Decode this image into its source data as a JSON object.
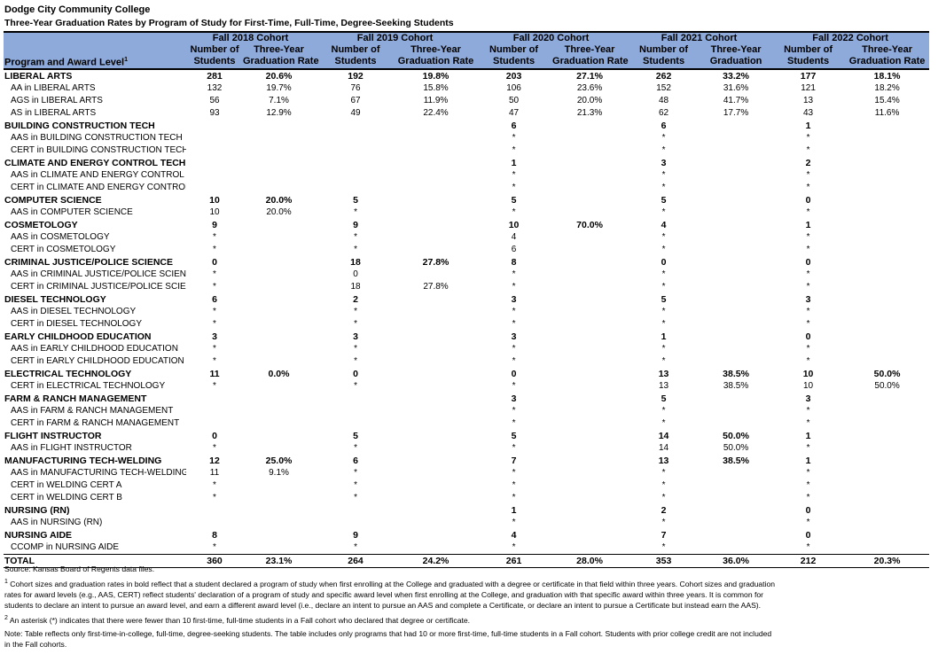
{
  "title": "Dodge City Community College",
  "subtitle": "Three-Year Graduation Rates by Program of Study for First-Time, Full-Time, Degree-Seeking Students",
  "header": {
    "label_col": "Program and Award Level",
    "label_sup": "1",
    "cohorts": [
      "Fall 2018 Cohort",
      "Fall 2019 Cohort",
      "Fall 2020 Cohort",
      "Fall 2021 Cohort",
      "Fall 2022 Cohort"
    ],
    "sub1": [
      "Number of",
      "Three-Year",
      "Number of",
      "Three-Year",
      "Number of",
      "Three-Year",
      "Number of",
      "Three-Year",
      "Number of",
      "Three-Year"
    ],
    "sub2": [
      "Students",
      "Graduation Rate",
      "Students",
      "Graduation Rate",
      "Students",
      "Graduation Rate",
      "Students",
      "Graduation",
      "Students",
      "Graduation Rate"
    ]
  },
  "header_color": "#8eaadb",
  "rows": [
    {
      "type": "prog",
      "label": "LIBERAL ARTS",
      "cells": [
        "281",
        "20.6%",
        "192",
        "19.8%",
        "203",
        "27.1%",
        "262",
        "33.2%",
        "177",
        "18.1%"
      ]
    },
    {
      "type": "sub",
      "label": "AA in LIBERAL ARTS",
      "cells": [
        "132",
        "19.7%",
        "76",
        "15.8%",
        "106",
        "23.6%",
        "152",
        "31.6%",
        "121",
        "18.2%"
      ]
    },
    {
      "type": "sub",
      "label": "AGS in LIBERAL ARTS",
      "cells": [
        "56",
        "7.1%",
        "67",
        "11.9%",
        "50",
        "20.0%",
        "48",
        "41.7%",
        "13",
        "15.4%"
      ]
    },
    {
      "type": "sub",
      "label": "AS in LIBERAL ARTS",
      "cells": [
        "93",
        "12.9%",
        "49",
        "22.4%",
        "47",
        "21.3%",
        "62",
        "17.7%",
        "43",
        "11.6%"
      ]
    },
    {
      "type": "prog",
      "label": "BUILDING CONSTRUCTION TECH",
      "cells": [
        "",
        "",
        "",
        "",
        "6",
        "",
        "6",
        "",
        "1",
        ""
      ]
    },
    {
      "type": "sub",
      "label": "AAS in BUILDING CONSTRUCTION TECH",
      "cells": [
        "",
        "",
        "",
        "",
        "*",
        "",
        "*",
        "",
        "*",
        ""
      ]
    },
    {
      "type": "sub",
      "label": "CERT in BUILDING CONSTRUCTION TECH",
      "cells": [
        "",
        "",
        "",
        "",
        "*",
        "",
        "*",
        "",
        "*",
        ""
      ]
    },
    {
      "type": "prog",
      "label": "CLIMATE AND ENERGY CONTROL TECH (HVAC)",
      "cells": [
        "",
        "",
        "",
        "",
        "1",
        "",
        "3",
        "",
        "2",
        ""
      ]
    },
    {
      "type": "sub",
      "label": "AAS in CLIMATE AND ENERGY CONTROL TECH",
      "cells": [
        "",
        "",
        "",
        "",
        "*",
        "",
        "*",
        "",
        "*",
        ""
      ]
    },
    {
      "type": "sub",
      "label": "CERT in CLIMATE AND ENERGY CONTROL TECH",
      "cells": [
        "",
        "",
        "",
        "",
        "*",
        "",
        "*",
        "",
        "*",
        ""
      ]
    },
    {
      "type": "prog",
      "label": "COMPUTER SCIENCE",
      "cells": [
        "10",
        "20.0%",
        "5",
        "",
        "5",
        "",
        "5",
        "",
        "0",
        ""
      ]
    },
    {
      "type": "sub",
      "label": "AAS in COMPUTER SCIENCE",
      "cells": [
        "10",
        "20.0%",
        "*",
        "",
        "*",
        "",
        "*",
        "",
        "*",
        ""
      ]
    },
    {
      "type": "prog",
      "label": "COSMETOLOGY",
      "cells": [
        "9",
        "",
        "9",
        "",
        "10",
        "70.0%",
        "4",
        "",
        "1",
        ""
      ]
    },
    {
      "type": "sub",
      "label": "AAS in COSMETOLOGY",
      "cells": [
        "*",
        "",
        "*",
        "",
        "4",
        "",
        "*",
        "",
        "*",
        ""
      ]
    },
    {
      "type": "sub",
      "label": "CERT in COSMETOLOGY",
      "cells": [
        "*",
        "",
        "*",
        "",
        "6",
        "",
        "*",
        "",
        "*",
        ""
      ]
    },
    {
      "type": "prog",
      "label": "CRIMINAL JUSTICE/POLICE SCIENCE",
      "cells": [
        "0",
        "",
        "18",
        "27.8%",
        "8",
        "",
        "0",
        "",
        "0",
        ""
      ]
    },
    {
      "type": "sub",
      "label": "AAS in CRIMINAL JUSTICE/POLICE SCIENC",
      "cells": [
        "*",
        "",
        "0",
        "",
        "*",
        "",
        "*",
        "",
        "*",
        ""
      ]
    },
    {
      "type": "sub",
      "label": "CERT in CRIMINAL JUSTICE/POLICE SCIEN",
      "cells": [
        "*",
        "",
        "18",
        "27.8%",
        "*",
        "",
        "*",
        "",
        "*",
        ""
      ]
    },
    {
      "type": "prog",
      "label": "DIESEL TECHNOLOGY",
      "cells": [
        "6",
        "",
        "2",
        "",
        "3",
        "",
        "5",
        "",
        "3",
        ""
      ]
    },
    {
      "type": "sub",
      "label": "AAS in DIESEL TECHNOLOGY",
      "cells": [
        "*",
        "",
        "*",
        "",
        "*",
        "",
        "*",
        "",
        "*",
        ""
      ]
    },
    {
      "type": "sub",
      "label": "CERT in DIESEL TECHNOLOGY",
      "cells": [
        "*",
        "",
        "*",
        "",
        "*",
        "",
        "*",
        "",
        "*",
        ""
      ]
    },
    {
      "type": "prog",
      "label": "EARLY CHILDHOOD EDUCATION",
      "cells": [
        "3",
        "",
        "3",
        "",
        "3",
        "",
        "1",
        "",
        "0",
        ""
      ]
    },
    {
      "type": "sub",
      "label": "AAS in EARLY CHILDHOOD EDUCATION",
      "cells": [
        "*",
        "",
        "*",
        "",
        "*",
        "",
        "*",
        "",
        "*",
        ""
      ]
    },
    {
      "type": "sub",
      "label": "CERT in EARLY CHILDHOOD EDUCATION",
      "cells": [
        "*",
        "",
        "*",
        "",
        "*",
        "",
        "*",
        "",
        "*",
        ""
      ]
    },
    {
      "type": "prog",
      "label": "ELECTRICAL TECHNOLOGY",
      "cells": [
        "11",
        "0.0%",
        "0",
        "",
        "0",
        "",
        "13",
        "38.5%",
        "10",
        "50.0%"
      ]
    },
    {
      "type": "sub",
      "label": "CERT in ELECTRICAL TECHNOLOGY",
      "cells": [
        "*",
        "",
        "*",
        "",
        "*",
        "",
        "13",
        "38.5%",
        "10",
        "50.0%"
      ]
    },
    {
      "type": "prog",
      "label": "FARM & RANCH MANAGEMENT",
      "cells": [
        "",
        "",
        "",
        "",
        "3",
        "",
        "5",
        "",
        "3",
        ""
      ]
    },
    {
      "type": "sub",
      "label": "AAS in FARM & RANCH MANAGEMENT",
      "cells": [
        "",
        "",
        "",
        "",
        "*",
        "",
        "*",
        "",
        "*",
        ""
      ]
    },
    {
      "type": "sub",
      "label": "CERT in FARM & RANCH MANAGEMENT",
      "cells": [
        "",
        "",
        "",
        "",
        "*",
        "",
        "*",
        "",
        "*",
        ""
      ]
    },
    {
      "type": "prog",
      "label": "FLIGHT INSTRUCTOR",
      "cells": [
        "0",
        "",
        "5",
        "",
        "5",
        "",
        "14",
        "50.0%",
        "1",
        ""
      ]
    },
    {
      "type": "sub",
      "label": "AAS in FLIGHT INSTRUCTOR",
      "cells": [
        "*",
        "",
        "*",
        "",
        "*",
        "",
        "14",
        "50.0%",
        "*",
        ""
      ]
    },
    {
      "type": "prog",
      "label": "MANUFACTURING TECH-WELDING",
      "cells": [
        "12",
        "25.0%",
        "6",
        "",
        "7",
        "",
        "13",
        "38.5%",
        "1",
        ""
      ]
    },
    {
      "type": "sub",
      "label": "AAS in MANUFACTURING TECH-WELDING",
      "cells": [
        "11",
        "9.1%",
        "*",
        "",
        "*",
        "",
        "*",
        "",
        "*",
        ""
      ]
    },
    {
      "type": "sub",
      "label": "CERT in WELDING CERT A",
      "cells": [
        "*",
        "",
        "*",
        "",
        "*",
        "",
        "*",
        "",
        "*",
        ""
      ]
    },
    {
      "type": "sub",
      "label": "CERT in WELDING CERT B",
      "cells": [
        "*",
        "",
        "*",
        "",
        "*",
        "",
        "*",
        "",
        "*",
        ""
      ]
    },
    {
      "type": "prog",
      "label": "NURSING (RN)",
      "cells": [
        "",
        "",
        "",
        "",
        "1",
        "",
        "2",
        "",
        "0",
        ""
      ]
    },
    {
      "type": "sub",
      "label": "AAS in NURSING (RN)",
      "cells": [
        "",
        "",
        "",
        "",
        "*",
        "",
        "*",
        "",
        "*",
        ""
      ]
    },
    {
      "type": "prog",
      "label": "NURSING AIDE",
      "cells": [
        "8",
        "",
        "9",
        "",
        "4",
        "",
        "7",
        "",
        "0",
        ""
      ]
    },
    {
      "type": "sub",
      "label": "CCOMP in NURSING AIDE",
      "cells": [
        "*",
        "",
        "*",
        "",
        "*",
        "",
        "*",
        "",
        "*",
        ""
      ]
    },
    {
      "type": "total",
      "label": "TOTAL",
      "cells": [
        "360",
        "23.1%",
        "264",
        "24.2%",
        "261",
        "28.0%",
        "353",
        "36.0%",
        "212",
        "20.3%"
      ]
    }
  ],
  "notes": {
    "source": "Source: Kansas Board of Regents data files.",
    "fn1_sup": "1",
    "fn1": "Cohort sizes and graduation rates in bold reflect that a student declared a program of study when first enrolling at the College and graduated with a degree or certificate in that field within three years. Cohort sizes and graduation rates for award levels (e.g., AAS, CERT) reflect students' declaration of a program of study and specific award level when first enrolling at the College, and graduation with that specific award within three years. It is common for students to declare an intent to pursue an award level, and earn a different award level (i.e., declare an intent to pursue an AAS and complete a Certificate, or declare an intent to pursue a Certificate but instead earn the AAS).",
    "fn2_sup": "2",
    "fn2": "An asterisk (*) indicates that there were fewer than 10 first-time, full-time students in a Fall cohort who declared that degree or certificate.",
    "note": "Note: Table reflects only first-time-in-college, full-time, degree-seeking students. The table includes only programs that had 10 or more first-time, full-time students in a Fall cohort. Students with prior college credit are not included in the Fall cohorts."
  }
}
